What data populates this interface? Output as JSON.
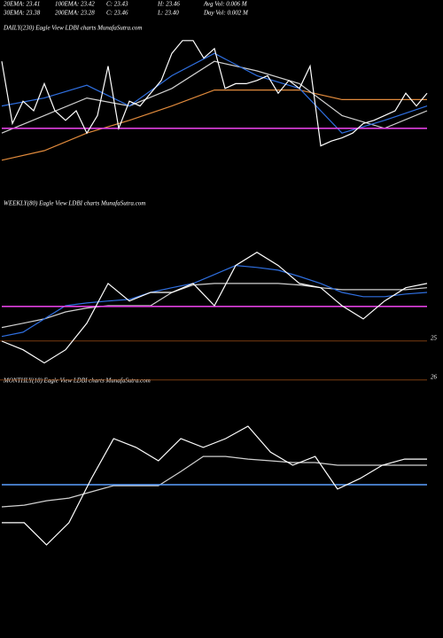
{
  "header": {
    "row1": [
      "20EMA: 23.41",
      "100EMA: 23.42",
      "C: 23.43",
      "H: 23.46",
      "Avg Vol: 0.006 M"
    ],
    "row2": [
      "30EMA: 23.38",
      "200EMA: 23.28",
      "C: 23.46",
      "L: 23.40",
      "Day Vol: 0.002 M"
    ]
  },
  "chart_data": [
    {
      "type": "line",
      "title": "DAILY(230) Eagle  View  LDBI charts MunafaSutra.com",
      "ylim": [
        0,
        100
      ],
      "series": [
        {
          "color": "#e08a3c",
          "values": [
            19,
            25,
            36,
            44,
            53,
            63,
            63,
            63,
            57,
            57,
            57
          ]
        },
        {
          "color": "#d0d0d0",
          "values": [
            36,
            47,
            58,
            53,
            64,
            81,
            75,
            67,
            47,
            39,
            50
          ]
        },
        {
          "color": "#2f6fe0",
          "values": [
            53,
            58,
            66,
            53,
            72,
            86,
            72,
            64,
            36,
            44,
            53
          ]
        },
        {
          "color": "#e040e0",
          "values": [
            39,
            39
          ]
        },
        {
          "color": "#ffffff",
          "values": [
            81,
            42,
            56,
            50,
            67,
            50,
            44,
            50,
            36,
            47,
            78,
            39,
            56,
            53,
            61,
            69,
            86,
            94,
            94,
            83,
            89,
            64,
            67,
            67,
            69,
            72,
            61,
            69,
            64,
            78,
            28,
            31,
            33,
            36,
            42,
            44,
            47,
            50,
            61,
            53,
            61
          ]
        }
      ]
    },
    {
      "type": "line",
      "title": "WEEKLY(80) Eagle  View  LDBI charts MunafaSutra.com",
      "ylim": [
        26.3,
        21.3
      ],
      "yticks": [
        25,
        26
      ],
      "series": [
        {
          "color": "#d0d0d0",
          "values": [
            24.7,
            24.59,
            24.48,
            24.3,
            24.2,
            24.14,
            24.14,
            24.14,
            23.8,
            23.61,
            23.57,
            23.57,
            23.57,
            23.57,
            23.61,
            23.68,
            23.73,
            23.73,
            23.73,
            23.73,
            23.68
          ]
        },
        {
          "color": "#2f6fe0",
          "values": [
            24.93,
            24.82,
            24.48,
            24.14,
            24.07,
            24.02,
            23.98,
            23.8,
            23.68,
            23.57,
            23.34,
            23.11,
            23.16,
            23.23,
            23.39,
            23.57,
            23.8,
            23.91,
            23.91,
            23.84,
            23.8
          ]
        },
        {
          "color": "#e040e0",
          "values": [
            24.16,
            24.16
          ]
        },
        {
          "color": "#ffffff",
          "values": [
            25.05,
            25.27,
            25.61,
            25.27,
            24.59,
            23.57,
            24.02,
            23.8,
            23.8,
            23.57,
            24.14,
            23.11,
            22.77,
            23.11,
            23.57,
            23.68,
            24.14,
            24.48,
            24.02,
            23.68,
            23.57
          ]
        }
      ]
    },
    {
      "type": "line",
      "title": "MONTHLY(18) Eagle  View  LDBI charts MunafaSutra.com",
      "ylim": [
        0,
        100
      ],
      "series": [
        {
          "color": "#d0d0d0",
          "values": [
            52,
            52.7,
            54.5,
            55.6,
            58.2,
            60.7,
            60.7,
            60.7,
            66.5,
            72.7,
            72.7,
            71.6,
            70.9,
            70.2,
            70.2,
            69.1,
            69.1,
            69.1,
            69.1,
            69.1
          ]
        },
        {
          "color": "#5aa0ff",
          "values": [
            61.1,
            61.1
          ]
        },
        {
          "color": "#ffffff",
          "values": [
            45.5,
            45.5,
            36.4,
            45.5,
            63.6,
            80,
            76.4,
            70.9,
            80,
            76.4,
            80,
            85.1,
            74.5,
            69.1,
            72.7,
            59.3,
            63.6,
            69.1,
            71.6,
            71.6
          ]
        }
      ]
    }
  ]
}
